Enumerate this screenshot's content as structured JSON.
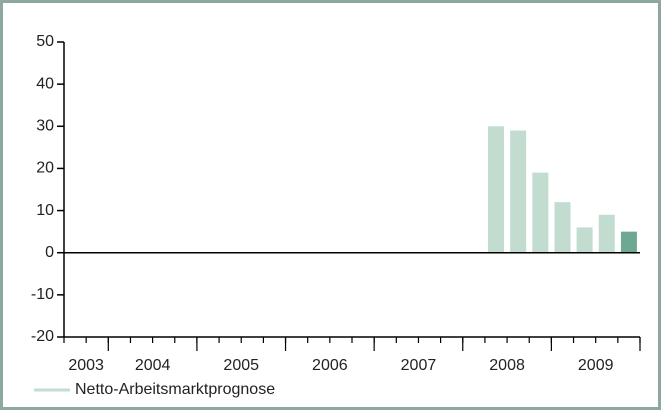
{
  "chart_data": {
    "type": "bar",
    "categories": [
      null,
      null,
      null,
      null,
      null,
      null,
      null,
      null,
      null,
      null,
      null,
      null,
      null,
      null,
      null,
      null,
      null,
      null,
      null,
      null,
      null,
      null,
      null,
      null,
      null,
      null
    ],
    "years": [
      "2003",
      "2004",
      "2005",
      "2006",
      "2007",
      "2008",
      "2009"
    ],
    "year_quarters": [
      2,
      4,
      4,
      4,
      4,
      4,
      4
    ],
    "series": [
      {
        "name": "Netto-Arbeitsmarktprognose",
        "color": "#c2ddd0",
        "values": [
          null,
          null,
          null,
          null,
          null,
          null,
          null,
          null,
          null,
          null,
          null,
          null,
          null,
          null,
          null,
          null,
          null,
          null,
          null,
          30,
          29,
          19,
          12,
          6,
          9,
          5
        ],
        "colors": [
          null,
          null,
          null,
          null,
          null,
          null,
          null,
          null,
          null,
          null,
          null,
          null,
          null,
          null,
          null,
          null,
          null,
          null,
          null,
          "#c2ddd0",
          "#c2ddd0",
          "#c2ddd0",
          "#c2ddd0",
          "#c2ddd0",
          "#c2ddd0",
          "#6ea892"
        ]
      }
    ],
    "ylim": [
      -20,
      50
    ],
    "yticks": [
      -20,
      -10,
      0,
      10,
      20,
      30,
      40,
      50
    ],
    "legend": "bottom-left"
  }
}
